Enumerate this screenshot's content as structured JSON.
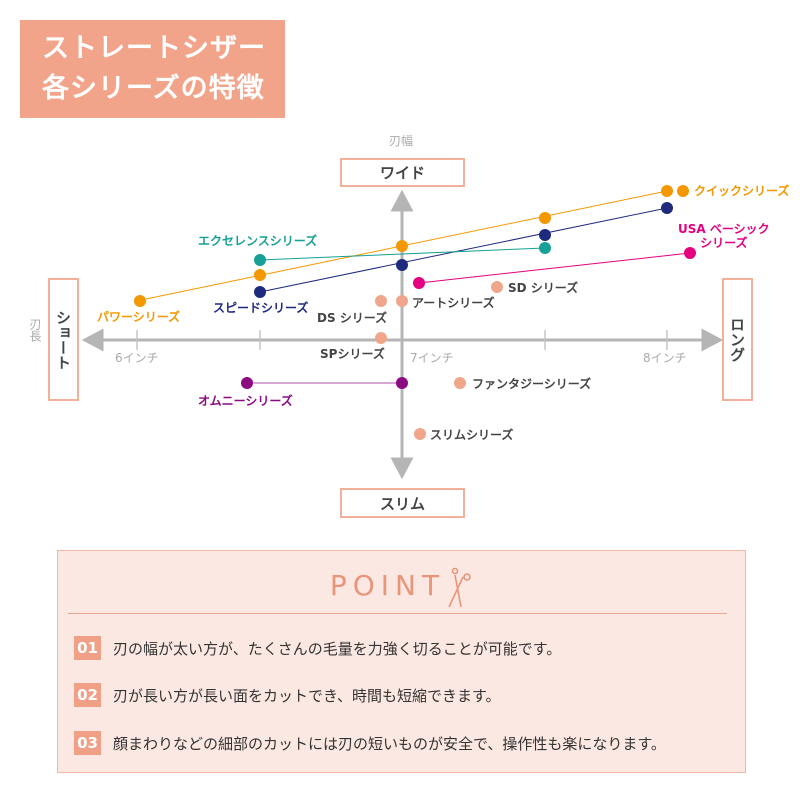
{
  "title": {
    "line1": "ストレートシザー",
    "line2": "各シリーズの特徴"
  },
  "axes": {
    "vertical_name": "刃幅",
    "horizontal_name": "刃長",
    "top": "ワイド",
    "bottom": "スリム",
    "left": "ショート",
    "right": "ロング",
    "ticks": [
      "6インチ",
      "7インチ",
      "8インチ"
    ]
  },
  "series_labels": {
    "quick": "クイックシリーズ",
    "usa_1": "USA ベーシック",
    "usa_2": "シリーズ",
    "excellence": "エクセレンスシリーズ",
    "power": "パワーシリーズ",
    "speed": "スピードシリーズ",
    "ds": "DS シリーズ",
    "art": "アートシリーズ",
    "sd": "SD シリーズ",
    "sp": "SPシリーズ",
    "omni": "オムニーシリーズ",
    "fantasy": "ファンタジーシリーズ",
    "slim": "スリムシリーズ"
  },
  "colors": {
    "orange": "#f39800",
    "navy": "#1d2a7e",
    "teal": "#16a096",
    "pink": "#e4007f",
    "purple": "#8b0a82",
    "salmon": "#f0a68a",
    "title_bg": "#f2a48a"
  },
  "point": {
    "title": "POINT",
    "items": [
      {
        "num": "01",
        "text": "刃の幅が太い方が、たくさんの毛量を力強く切ることが可能です。"
      },
      {
        "num": "02",
        "text": "刃が長い方が長い面をカットでき、時間も短縮できます。"
      },
      {
        "num": "03",
        "text": "顔まわりなどの細部のカットには刃の短いものが安全で、操作性も楽になります。"
      }
    ]
  }
}
